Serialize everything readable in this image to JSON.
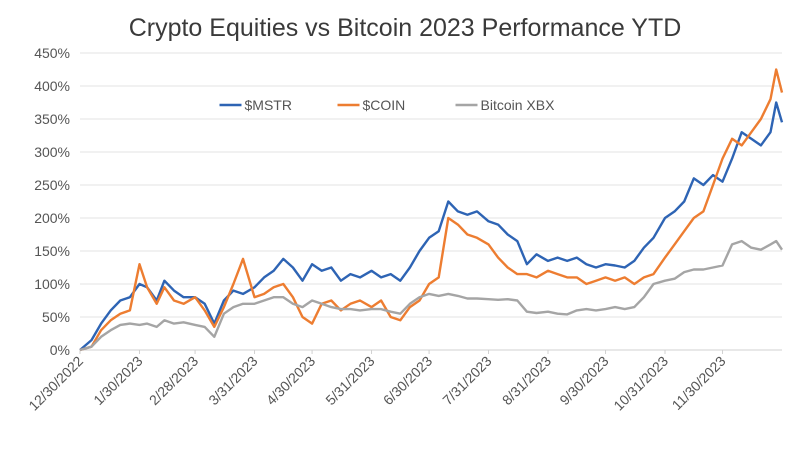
{
  "chart_data": {
    "type": "line",
    "title": "Crypto Equities vs Bitcoin 2023 Performance YTD",
    "xlabel": "",
    "ylabel": "",
    "x_range": [
      "2022-12-30",
      "2023-12-31"
    ],
    "ylim": [
      0,
      450
    ],
    "y_ticks": [
      0,
      50,
      100,
      150,
      200,
      250,
      300,
      350,
      400,
      450
    ],
    "y_tick_labels": [
      "0%",
      "50%",
      "100%",
      "150%",
      "200%",
      "250%",
      "300%",
      "350%",
      "400%",
      "450%"
    ],
    "x_ticks": [
      "2022-12-30",
      "2023-01-30",
      "2023-02-28",
      "2023-03-31",
      "2023-04-30",
      "2023-05-31",
      "2023-06-30",
      "2023-07-31",
      "2023-08-31",
      "2023-09-30",
      "2023-10-31",
      "2023-11-30"
    ],
    "x_tick_labels": [
      "12/30/2022",
      "1/30/2023",
      "2/28/2023",
      "3/31/2023",
      "4/30/2023",
      "5/31/2023",
      "6/30/2023",
      "7/31/2023",
      "8/31/2023",
      "9/30/2023",
      "10/31/2023",
      "11/30/2023"
    ],
    "grid": true,
    "legend_position": "top-center",
    "series": [
      {
        "name": "$MSTR",
        "color": "#2e64b4",
        "points": [
          [
            "2022-12-30",
            0
          ],
          [
            "2023-01-05",
            15
          ],
          [
            "2023-01-10",
            40
          ],
          [
            "2023-01-15",
            60
          ],
          [
            "2023-01-20",
            75
          ],
          [
            "2023-01-25",
            80
          ],
          [
            "2023-01-30",
            100
          ],
          [
            "2023-02-03",
            95
          ],
          [
            "2023-02-08",
            75
          ],
          [
            "2023-02-12",
            105
          ],
          [
            "2023-02-17",
            90
          ],
          [
            "2023-02-22",
            80
          ],
          [
            "2023-02-28",
            80
          ],
          [
            "2023-03-05",
            70
          ],
          [
            "2023-03-10",
            40
          ],
          [
            "2023-03-15",
            75
          ],
          [
            "2023-03-20",
            90
          ],
          [
            "2023-03-25",
            85
          ],
          [
            "2023-03-31",
            95
          ],
          [
            "2023-04-05",
            110
          ],
          [
            "2023-04-10",
            120
          ],
          [
            "2023-04-15",
            138
          ],
          [
            "2023-04-20",
            125
          ],
          [
            "2023-04-25",
            105
          ],
          [
            "2023-04-30",
            130
          ],
          [
            "2023-05-05",
            120
          ],
          [
            "2023-05-10",
            125
          ],
          [
            "2023-05-15",
            105
          ],
          [
            "2023-05-20",
            115
          ],
          [
            "2023-05-25",
            110
          ],
          [
            "2023-05-31",
            120
          ],
          [
            "2023-06-05",
            110
          ],
          [
            "2023-06-10",
            115
          ],
          [
            "2023-06-15",
            105
          ],
          [
            "2023-06-20",
            125
          ],
          [
            "2023-06-25",
            150
          ],
          [
            "2023-06-30",
            170
          ],
          [
            "2023-07-05",
            180
          ],
          [
            "2023-07-10",
            225
          ],
          [
            "2023-07-15",
            210
          ],
          [
            "2023-07-20",
            205
          ],
          [
            "2023-07-25",
            210
          ],
          [
            "2023-07-31",
            195
          ],
          [
            "2023-08-05",
            190
          ],
          [
            "2023-08-10",
            175
          ],
          [
            "2023-08-15",
            165
          ],
          [
            "2023-08-20",
            130
          ],
          [
            "2023-08-25",
            145
          ],
          [
            "2023-08-31",
            135
          ],
          [
            "2023-09-05",
            140
          ],
          [
            "2023-09-10",
            135
          ],
          [
            "2023-09-15",
            140
          ],
          [
            "2023-09-20",
            130
          ],
          [
            "2023-09-25",
            125
          ],
          [
            "2023-09-30",
            130
          ],
          [
            "2023-10-05",
            128
          ],
          [
            "2023-10-10",
            125
          ],
          [
            "2023-10-15",
            135
          ],
          [
            "2023-10-20",
            155
          ],
          [
            "2023-10-25",
            170
          ],
          [
            "2023-10-31",
            200
          ],
          [
            "2023-11-05",
            210
          ],
          [
            "2023-11-10",
            225
          ],
          [
            "2023-11-15",
            260
          ],
          [
            "2023-11-20",
            250
          ],
          [
            "2023-11-25",
            265
          ],
          [
            "2023-11-30",
            255
          ],
          [
            "2023-12-05",
            290
          ],
          [
            "2023-12-10",
            330
          ],
          [
            "2023-12-15",
            320
          ],
          [
            "2023-12-20",
            310
          ],
          [
            "2023-12-25",
            330
          ],
          [
            "2023-12-28",
            375
          ],
          [
            "2023-12-31",
            345
          ]
        ]
      },
      {
        "name": "$COIN",
        "color": "#ed7d31",
        "points": [
          [
            "2022-12-30",
            0
          ],
          [
            "2023-01-05",
            5
          ],
          [
            "2023-01-10",
            30
          ],
          [
            "2023-01-15",
            45
          ],
          [
            "2023-01-20",
            55
          ],
          [
            "2023-01-25",
            60
          ],
          [
            "2023-01-30",
            130
          ],
          [
            "2023-02-03",
            95
          ],
          [
            "2023-02-08",
            70
          ],
          [
            "2023-02-12",
            95
          ],
          [
            "2023-02-17",
            75
          ],
          [
            "2023-02-22",
            70
          ],
          [
            "2023-02-28",
            80
          ],
          [
            "2023-03-05",
            60
          ],
          [
            "2023-03-10",
            35
          ],
          [
            "2023-03-15",
            65
          ],
          [
            "2023-03-20",
            100
          ],
          [
            "2023-03-25",
            138
          ],
          [
            "2023-03-31",
            80
          ],
          [
            "2023-04-05",
            85
          ],
          [
            "2023-04-10",
            95
          ],
          [
            "2023-04-15",
            100
          ],
          [
            "2023-04-20",
            80
          ],
          [
            "2023-04-25",
            50
          ],
          [
            "2023-04-30",
            40
          ],
          [
            "2023-05-05",
            70
          ],
          [
            "2023-05-10",
            75
          ],
          [
            "2023-05-15",
            60
          ],
          [
            "2023-05-20",
            70
          ],
          [
            "2023-05-25",
            75
          ],
          [
            "2023-05-31",
            65
          ],
          [
            "2023-06-05",
            75
          ],
          [
            "2023-06-10",
            50
          ],
          [
            "2023-06-15",
            45
          ],
          [
            "2023-06-20",
            65
          ],
          [
            "2023-06-25",
            75
          ],
          [
            "2023-06-30",
            100
          ],
          [
            "2023-07-05",
            110
          ],
          [
            "2023-07-10",
            200
          ],
          [
            "2023-07-15",
            190
          ],
          [
            "2023-07-20",
            175
          ],
          [
            "2023-07-25",
            170
          ],
          [
            "2023-07-31",
            160
          ],
          [
            "2023-08-05",
            140
          ],
          [
            "2023-08-10",
            125
          ],
          [
            "2023-08-15",
            115
          ],
          [
            "2023-08-20",
            115
          ],
          [
            "2023-08-25",
            110
          ],
          [
            "2023-08-31",
            120
          ],
          [
            "2023-09-05",
            115
          ],
          [
            "2023-09-10",
            110
          ],
          [
            "2023-09-15",
            110
          ],
          [
            "2023-09-20",
            100
          ],
          [
            "2023-09-25",
            105
          ],
          [
            "2023-09-30",
            110
          ],
          [
            "2023-10-05",
            105
          ],
          [
            "2023-10-10",
            110
          ],
          [
            "2023-10-15",
            100
          ],
          [
            "2023-10-20",
            110
          ],
          [
            "2023-10-25",
            115
          ],
          [
            "2023-10-31",
            140
          ],
          [
            "2023-11-05",
            160
          ],
          [
            "2023-11-10",
            180
          ],
          [
            "2023-11-15",
            200
          ],
          [
            "2023-11-20",
            210
          ],
          [
            "2023-11-25",
            250
          ],
          [
            "2023-11-30",
            290
          ],
          [
            "2023-12-05",
            320
          ],
          [
            "2023-12-10",
            310
          ],
          [
            "2023-12-15",
            330
          ],
          [
            "2023-12-20",
            350
          ],
          [
            "2023-12-25",
            380
          ],
          [
            "2023-12-28",
            425
          ],
          [
            "2023-12-31",
            390
          ]
        ]
      },
      {
        "name": "Bitcoin XBX",
        "color": "#a5a5a5",
        "points": [
          [
            "2022-12-30",
            0
          ],
          [
            "2023-01-05",
            5
          ],
          [
            "2023-01-10",
            20
          ],
          [
            "2023-01-15",
            30
          ],
          [
            "2023-01-20",
            38
          ],
          [
            "2023-01-25",
            40
          ],
          [
            "2023-01-30",
            38
          ],
          [
            "2023-02-03",
            40
          ],
          [
            "2023-02-08",
            35
          ],
          [
            "2023-02-12",
            45
          ],
          [
            "2023-02-17",
            40
          ],
          [
            "2023-02-22",
            42
          ],
          [
            "2023-02-28",
            38
          ],
          [
            "2023-03-05",
            35
          ],
          [
            "2023-03-10",
            20
          ],
          [
            "2023-03-15",
            55
          ],
          [
            "2023-03-20",
            65
          ],
          [
            "2023-03-25",
            70
          ],
          [
            "2023-03-31",
            70
          ],
          [
            "2023-04-05",
            75
          ],
          [
            "2023-04-10",
            80
          ],
          [
            "2023-04-15",
            80
          ],
          [
            "2023-04-20",
            70
          ],
          [
            "2023-04-25",
            65
          ],
          [
            "2023-04-30",
            75
          ],
          [
            "2023-05-05",
            70
          ],
          [
            "2023-05-10",
            65
          ],
          [
            "2023-05-15",
            62
          ],
          [
            "2023-05-20",
            62
          ],
          [
            "2023-05-25",
            60
          ],
          [
            "2023-05-31",
            62
          ],
          [
            "2023-06-05",
            62
          ],
          [
            "2023-06-10",
            58
          ],
          [
            "2023-06-15",
            55
          ],
          [
            "2023-06-20",
            70
          ],
          [
            "2023-06-25",
            80
          ],
          [
            "2023-06-30",
            85
          ],
          [
            "2023-07-05",
            82
          ],
          [
            "2023-07-10",
            85
          ],
          [
            "2023-07-15",
            82
          ],
          [
            "2023-07-20",
            78
          ],
          [
            "2023-07-25",
            78
          ],
          [
            "2023-07-31",
            77
          ],
          [
            "2023-08-05",
            76
          ],
          [
            "2023-08-10",
            77
          ],
          [
            "2023-08-15",
            75
          ],
          [
            "2023-08-20",
            58
          ],
          [
            "2023-08-25",
            56
          ],
          [
            "2023-08-31",
            58
          ],
          [
            "2023-09-05",
            55
          ],
          [
            "2023-09-10",
            54
          ],
          [
            "2023-09-15",
            60
          ],
          [
            "2023-09-20",
            62
          ],
          [
            "2023-09-25",
            60
          ],
          [
            "2023-09-30",
            62
          ],
          [
            "2023-10-05",
            65
          ],
          [
            "2023-10-10",
            62
          ],
          [
            "2023-10-15",
            65
          ],
          [
            "2023-10-20",
            80
          ],
          [
            "2023-10-25",
            100
          ],
          [
            "2023-10-31",
            105
          ],
          [
            "2023-11-05",
            108
          ],
          [
            "2023-11-10",
            118
          ],
          [
            "2023-11-15",
            122
          ],
          [
            "2023-11-20",
            122
          ],
          [
            "2023-11-25",
            125
          ],
          [
            "2023-11-30",
            128
          ],
          [
            "2023-12-05",
            160
          ],
          [
            "2023-12-10",
            165
          ],
          [
            "2023-12-15",
            155
          ],
          [
            "2023-12-20",
            152
          ],
          [
            "2023-12-25",
            160
          ],
          [
            "2023-12-28",
            165
          ],
          [
            "2023-12-31",
            152
          ]
        ]
      }
    ]
  }
}
